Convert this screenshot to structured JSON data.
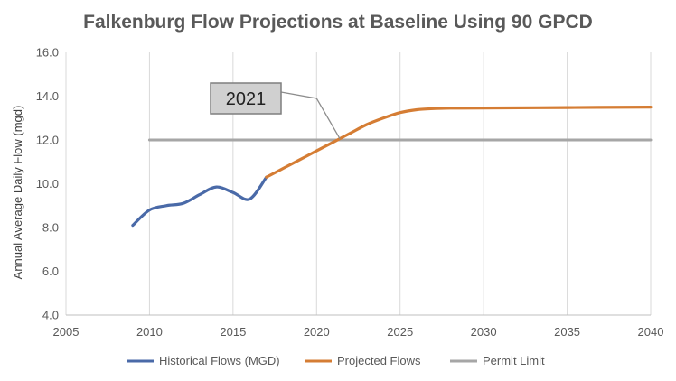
{
  "chart_data": {
    "type": "line",
    "title": "Falkenburg Flow Projections at Baseline Using 90 GPCD",
    "xlabel": "",
    "ylabel": "Annual Average Daily Flow (mgd)",
    "xlim": [
      2005,
      2040
    ],
    "ylim": [
      4.0,
      16.0
    ],
    "x_ticks": [
      "2005",
      "2010",
      "2015",
      "2020",
      "2025",
      "2030",
      "2035",
      "2040"
    ],
    "y_ticks": [
      "4.0",
      "6.0",
      "8.0",
      "10.0",
      "12.0",
      "14.0",
      "16.0"
    ],
    "grid": "vertical",
    "legend_position": "bottom",
    "series": [
      {
        "name": "Historical Flows (MGD)",
        "color": "#4a6aa8",
        "x": [
          2009,
          2010,
          2011,
          2012,
          2013,
          2014,
          2015,
          2016,
          2017
        ],
        "values": [
          8.1,
          8.8,
          9.0,
          9.1,
          9.5,
          9.85,
          9.6,
          9.3,
          10.3
        ]
      },
      {
        "name": "Projected Flows",
        "color": "#d57d34",
        "x": [
          2017,
          2018,
          2019,
          2020,
          2021,
          2022,
          2023,
          2024,
          2025,
          2026,
          2027,
          2028,
          2030,
          2035,
          2040
        ],
        "values": [
          10.3,
          10.7,
          11.1,
          11.5,
          11.9,
          12.3,
          12.7,
          13.0,
          13.25,
          13.38,
          13.43,
          13.45,
          13.46,
          13.48,
          13.5
        ]
      },
      {
        "name": "Permit Limit",
        "color": "#a6a6a6",
        "x": [
          2010,
          2040
        ],
        "values": [
          12.0,
          12.0
        ]
      }
    ],
    "annotations": [
      {
        "text": "2021",
        "points_to": {
          "x": 2021.4,
          "y": 12.05
        },
        "elbow": {
          "x": 2020.0,
          "y": 13.9
        }
      }
    ]
  }
}
